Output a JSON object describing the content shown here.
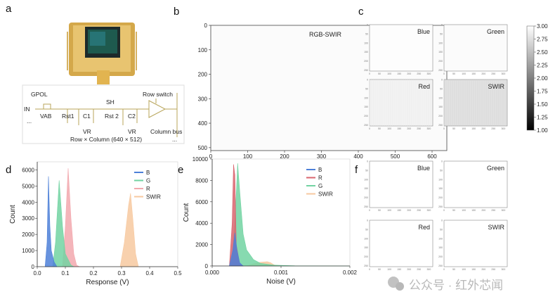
{
  "panels": {
    "a": "a",
    "b": "b",
    "c": "c",
    "d": "d",
    "e": "e",
    "f": "f"
  },
  "circuit": {
    "gpol": "GPOL",
    "in": "IN",
    "vab": "VAB",
    "rst1": "Rst1",
    "c1": "C1",
    "sh": "SH",
    "rst2": "Rst 2",
    "c2": "C2",
    "vr1": "VR",
    "vr2": "VR",
    "row_switch": "Row switch",
    "column_bus": "Column bus",
    "array": "Row × Column (640 × 512)",
    "ellipsis_left": "...",
    "ellipsis_right": "..."
  },
  "panel_b": {
    "label": "RGB-SWIR",
    "x_ticks": [
      0,
      100,
      200,
      300,
      400,
      500,
      600
    ],
    "y_ticks": [
      0,
      100,
      200,
      300,
      400,
      500
    ],
    "xlim": [
      0,
      640
    ],
    "ylim": [
      0,
      512
    ]
  },
  "panel_c": {
    "subplots": [
      "Blue",
      "Green",
      "Red",
      "SWIR"
    ],
    "x_ticks": [
      0,
      50,
      100,
      150,
      200,
      250,
      300
    ],
    "y_ticks": [
      0,
      50,
      100,
      150,
      200,
      250
    ],
    "colorbar": {
      "ticks": [
        "3.00",
        "2.75",
        "2.50",
        "2.25",
        "2.00",
        "1.75",
        "1.50",
        "1.25",
        "1.00"
      ],
      "range": [
        1.0,
        3.0
      ]
    },
    "colors": {
      "Blue": "#fdfdfd",
      "Green": "#fbfbfb",
      "Red": "#f3f3f3",
      "SWIR": "#e2e2e2"
    }
  },
  "panel_f": {
    "subplots": [
      "Blue",
      "Green",
      "Red",
      "SWIR"
    ],
    "x_ticks": [
      0,
      50,
      100,
      150,
      200,
      250,
      300
    ],
    "y_ticks": [
      0,
      50,
      100,
      150,
      200,
      250
    ]
  },
  "watermark": "公众号 · 红外芯闻",
  "chart_data": [
    {
      "panel": "d",
      "type": "area",
      "xlabel": "Response (V)",
      "ylabel": "Count",
      "xlim": [
        0,
        0.5
      ],
      "ylim": [
        0,
        6500
      ],
      "x_ticks": [
        "0.0",
        "0.1",
        "0.2",
        "0.3",
        "0.4",
        "0.5"
      ],
      "y_ticks": [
        "0",
        "1000",
        "2000",
        "3000",
        "4000",
        "5000",
        "6000"
      ],
      "legend": "top-right",
      "series": [
        {
          "name": "SWIR",
          "color": "#f7c9a0",
          "points": [
            [
              0.295,
              0
            ],
            [
              0.31,
              1500
            ],
            [
              0.325,
              3800
            ],
            [
              0.332,
              4550
            ],
            [
              0.34,
              3000
            ],
            [
              0.35,
              800
            ],
            [
              0.36,
              0
            ]
          ]
        },
        {
          "name": "R",
          "color": "#f2a8ae",
          "points": [
            [
              0.09,
              0
            ],
            [
              0.1,
              2500
            ],
            [
              0.11,
              6100
            ],
            [
              0.12,
              3000
            ],
            [
              0.13,
              800
            ],
            [
              0.14,
              100
            ],
            [
              0.15,
              0
            ]
          ]
        },
        {
          "name": "G",
          "color": "#72d3a2",
          "points": [
            [
              0.055,
              0
            ],
            [
              0.065,
              1500
            ],
            [
              0.078,
              5350
            ],
            [
              0.09,
              2500
            ],
            [
              0.1,
              800
            ],
            [
              0.12,
              100
            ],
            [
              0.13,
              0
            ]
          ]
        },
        {
          "name": "B",
          "color": "#4d80d8",
          "points": [
            [
              0.028,
              0
            ],
            [
              0.035,
              1500
            ],
            [
              0.04,
              5600
            ],
            [
              0.045,
              2500
            ],
            [
              0.05,
              1000
            ],
            [
              0.06,
              300
            ],
            [
              0.07,
              0
            ]
          ]
        }
      ]
    },
    {
      "panel": "e",
      "type": "area",
      "xlabel": "Noise (V)",
      "ylabel": "Count",
      "xlim": [
        0,
        0.002
      ],
      "ylim": [
        0,
        10000
      ],
      "x_ticks": [
        "0.000",
        "0.001",
        "0.002"
      ],
      "y_ticks": [
        "0",
        "2000",
        "4000",
        "6000",
        "8000",
        "10000"
      ],
      "legend": "top-right",
      "series": [
        {
          "name": "SWIR",
          "color": "#f7c9a0",
          "points": [
            [
              0.0005,
              0
            ],
            [
              0.0006,
              200
            ],
            [
              0.0007,
              350
            ],
            [
              0.0008,
              400
            ],
            [
              0.00085,
              300
            ],
            [
              0.0009,
              100
            ],
            [
              0.001,
              0
            ]
          ]
        },
        {
          "name": "G",
          "color": "#72d3a2",
          "points": [
            [
              0.00028,
              0
            ],
            [
              0.00033,
              4000
            ],
            [
              0.00037,
              9600
            ],
            [
              0.0004,
              7000
            ],
            [
              0.00045,
              3000
            ],
            [
              0.0005,
              1500
            ],
            [
              0.0006,
              600
            ],
            [
              0.0007,
              250
            ],
            [
              0.0009,
              80
            ],
            [
              0.0012,
              20
            ],
            [
              0.002,
              0
            ]
          ]
        },
        {
          "name": "R",
          "color": "#d9646e",
          "points": [
            [
              0.00025,
              0
            ],
            [
              0.00029,
              4000
            ],
            [
              0.00031,
              9500
            ],
            [
              0.00033,
              8500
            ],
            [
              0.00035,
              2000
            ],
            [
              0.0004,
              200
            ],
            [
              0.00045,
              0
            ]
          ]
        },
        {
          "name": "B",
          "color": "#4d80d8",
          "points": [
            [
              0.00025,
              0
            ],
            [
              0.0003,
              1500
            ],
            [
              0.00033,
              3100
            ],
            [
              0.00036,
              1500
            ],
            [
              0.0004,
              300
            ],
            [
              0.00045,
              0
            ]
          ]
        }
      ]
    }
  ]
}
